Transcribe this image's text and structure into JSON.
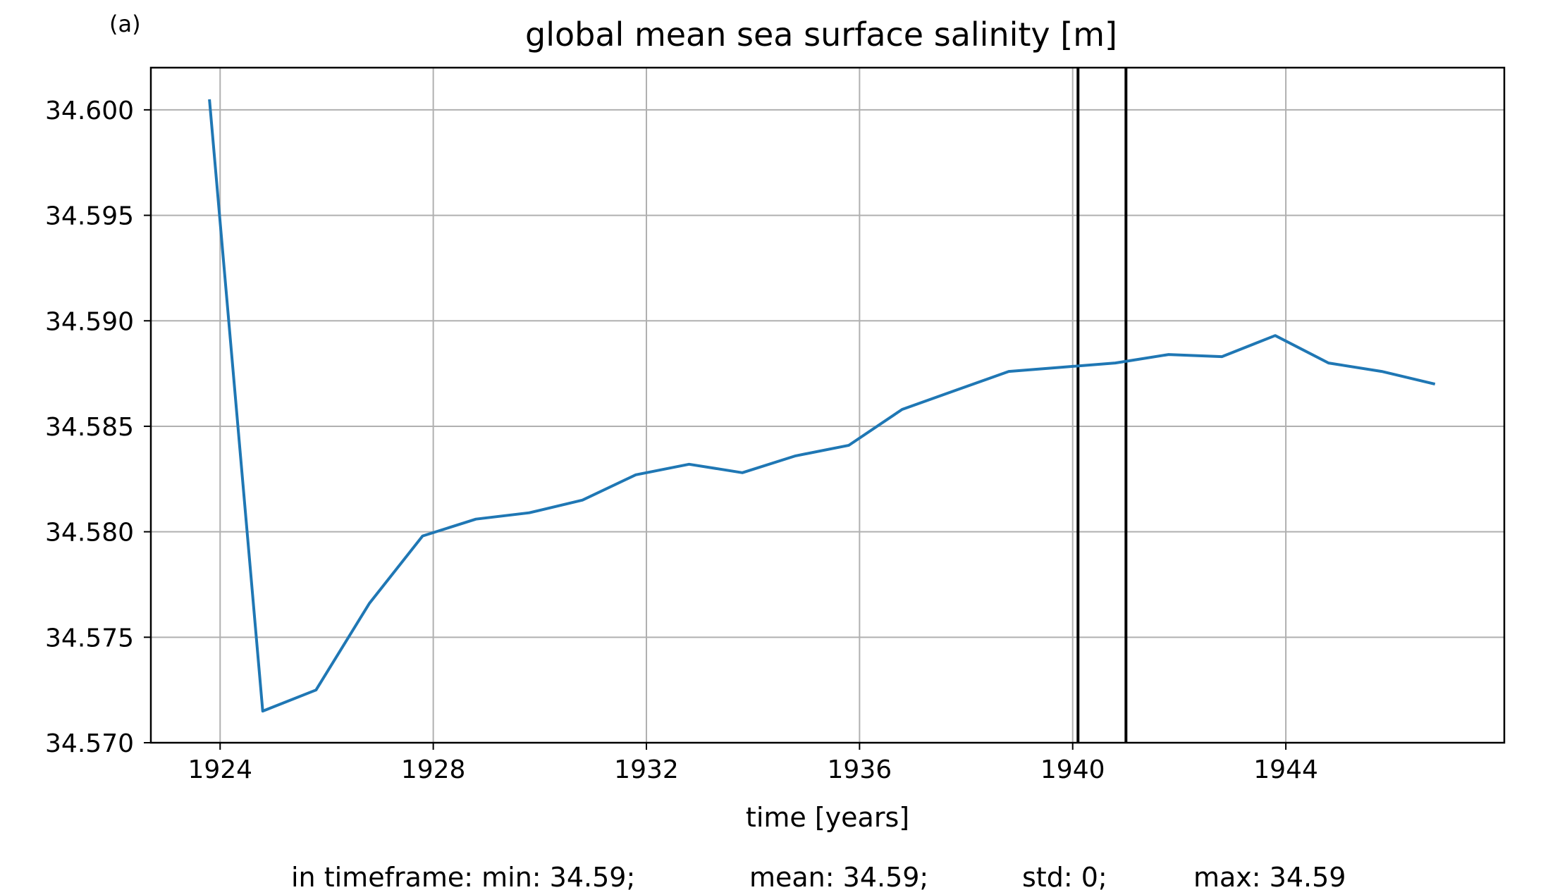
{
  "panel_label": "(a)",
  "footer": {
    "min": "in timeframe: min: 34.59;",
    "mean": "mean: 34.59;",
    "std": "std: 0;",
    "max": "max: 34.59"
  },
  "colors": {
    "series": "#1f77b4",
    "grid": "#b0b0b0",
    "vline": "#000000",
    "frame": "#000000"
  },
  "chart_data": {
    "type": "line",
    "title": "global mean sea surface salinity [m]",
    "xlabel": "time [years]",
    "ylabel": "",
    "grid": true,
    "xlim": [
      1922.7,
      1948.1
    ],
    "ylim": [
      34.57,
      34.602
    ],
    "x_ticks": [
      1924,
      1928,
      1932,
      1936,
      1940,
      1944
    ],
    "x_tick_labels": [
      "1924",
      "1928",
      "1932",
      "1936",
      "1940",
      "1944"
    ],
    "y_ticks": [
      34.57,
      34.575,
      34.58,
      34.585,
      34.59,
      34.595,
      34.6
    ],
    "y_tick_labels": [
      "34.570",
      "34.575",
      "34.580",
      "34.585",
      "34.590",
      "34.595",
      "34.600"
    ],
    "vertical_lines": [
      1940.1,
      1941.0
    ],
    "series": [
      {
        "x": [
          1923.8,
          1924.8,
          1925.8,
          1926.8,
          1927.8,
          1928.8,
          1929.8,
          1930.8,
          1931.8,
          1932.8,
          1933.8,
          1934.8,
          1935.8,
          1936.8,
          1937.8,
          1938.8,
          1939.8,
          1940.8,
          1941.8,
          1942.8,
          1943.8,
          1944.8,
          1945.8,
          1946.8
        ],
        "values": [
          34.6005,
          34.5715,
          34.5725,
          34.5766,
          34.5798,
          34.5806,
          34.5809,
          34.5815,
          34.5827,
          34.5832,
          34.5828,
          34.5836,
          34.5841,
          34.5858,
          34.5867,
          34.5876,
          34.5878,
          34.588,
          34.5884,
          34.5883,
          34.5893,
          34.588,
          34.5876,
          34.587
        ]
      }
    ]
  }
}
